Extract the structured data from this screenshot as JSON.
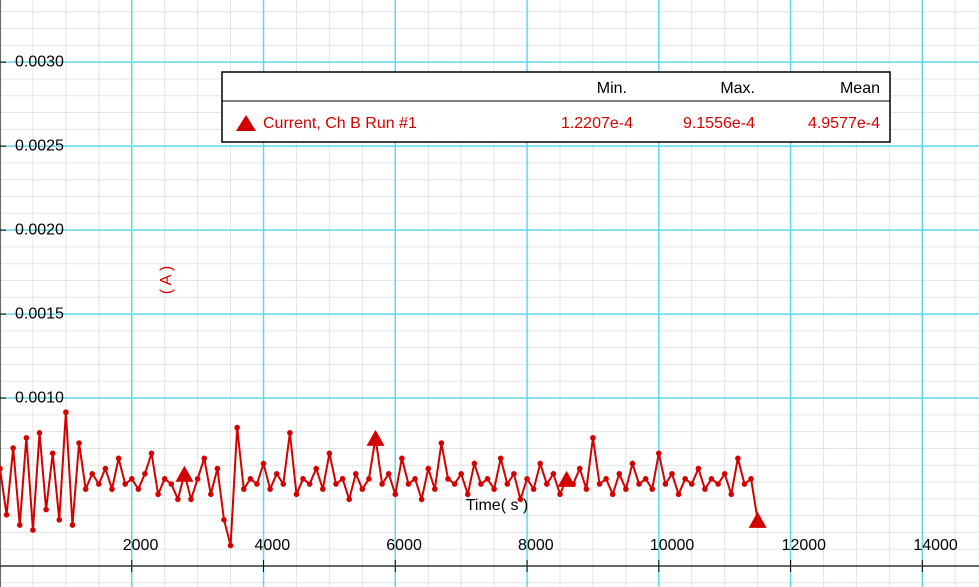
{
  "chart_data": {
    "type": "line",
    "y_label": "( A )",
    "x_label": "Time( s )",
    "xlim": [
      0,
      14860
    ],
    "ylim": [
      -0.000125,
      0.00337
    ],
    "xticks": [
      2000,
      4000,
      6000,
      8000,
      10000,
      12000,
      14000
    ],
    "yticks": [
      {
        "value": 0.001,
        "label": "0.0010"
      },
      {
        "value": 0.0015,
        "label": "0.0015"
      },
      {
        "value": 0.002,
        "label": "0.0020"
      },
      {
        "value": 0.0025,
        "label": "0.0025"
      },
      {
        "value": 0.003,
        "label": "0.0030"
      }
    ],
    "grid": true,
    "x": [
      0,
      100,
      200,
      300,
      400,
      500,
      600,
      700,
      800,
      900,
      1000,
      1100,
      1200,
      1300,
      1400,
      1500,
      1600,
      1700,
      1800,
      1900,
      2000,
      2100,
      2200,
      2300,
      2400,
      2500,
      2600,
      2700,
      2800,
      2900,
      3000,
      3100,
      3200,
      3300,
      3400,
      3500,
      3600,
      3700,
      3800,
      3900,
      4000,
      4100,
      4200,
      4300,
      4400,
      4500,
      4600,
      4700,
      4800,
      4900,
      5000,
      5100,
      5200,
      5300,
      5400,
      5500,
      5600,
      5700,
      5800,
      5900,
      6000,
      6100,
      6200,
      6300,
      6400,
      6500,
      6600,
      6700,
      6800,
      6900,
      7000,
      7100,
      7200,
      7300,
      7400,
      7500,
      7600,
      7700,
      7800,
      7900,
      8000,
      8100,
      8200,
      8300,
      8400,
      8500,
      8600,
      8700,
      8800,
      8900,
      9000,
      9100,
      9200,
      9300,
      9400,
      9500,
      9600,
      9700,
      9800,
      9900,
      10000,
      10100,
      10200,
      10300,
      10400,
      10500,
      10600,
      10700,
      10800,
      10900,
      11000,
      11100,
      11200,
      11300,
      11400,
      11500
    ],
    "series": [
      {
        "name": "Current, Ch B Run #1",
        "color": "#d40000",
        "values": [
          0.00058,
          0.000305,
          0.000702,
          0.000244,
          0.000763,
          0.000214,
          0.000793,
          0.000336,
          0.000671,
          0.000275,
          0.00091556,
          0.000244,
          0.000732,
          0.000458,
          0.000549,
          0.000488,
          0.00058,
          0.000458,
          0.000641,
          0.000488,
          0.000519,
          0.000458,
          0.000549,
          0.000671,
          0.000427,
          0.000519,
          0.000488,
          0.000397,
          0.000549,
          0.000397,
          0.000519,
          0.000641,
          0.000427,
          0.00058,
          0.000275,
          0.00012207,
          0.000824,
          0.000458,
          0.000519,
          0.000488,
          0.00061,
          0.000458,
          0.000549,
          0.000488,
          0.000793,
          0.000427,
          0.000519,
          0.000488,
          0.00058,
          0.000458,
          0.000671,
          0.000488,
          0.000519,
          0.000397,
          0.000549,
          0.000458,
          0.000519,
          0.000763,
          0.000488,
          0.000549,
          0.000427,
          0.000641,
          0.000488,
          0.000519,
          0.000397,
          0.00058,
          0.000458,
          0.000732,
          0.000519,
          0.000488,
          0.000549,
          0.000427,
          0.00061,
          0.000488,
          0.000519,
          0.000458,
          0.000641,
          0.000488,
          0.000549,
          0.000397,
          0.000519,
          0.000458,
          0.00061,
          0.000488,
          0.000549,
          0.000427,
          0.000519,
          0.000488,
          0.00058,
          0.000458,
          0.000763,
          0.000488,
          0.000519,
          0.000427,
          0.000549,
          0.000458,
          0.00061,
          0.000488,
          0.000519,
          0.000458,
          0.000671,
          0.000488,
          0.000549,
          0.000427,
          0.000519,
          0.000488,
          0.00058,
          0.000458,
          0.000519,
          0.000488,
          0.000549,
          0.000427,
          0.000641,
          0.000488,
          0.000519,
          0.000275
        ]
      }
    ],
    "stats": {
      "headers": [
        "Min.",
        "Max.",
        "Mean"
      ],
      "values": [
        0.00012207,
        0.00091556,
        0.00049577
      ],
      "value_labels": [
        "1.2207e-4",
        "9.1556e-4",
        "4.9577e-4"
      ]
    }
  }
}
